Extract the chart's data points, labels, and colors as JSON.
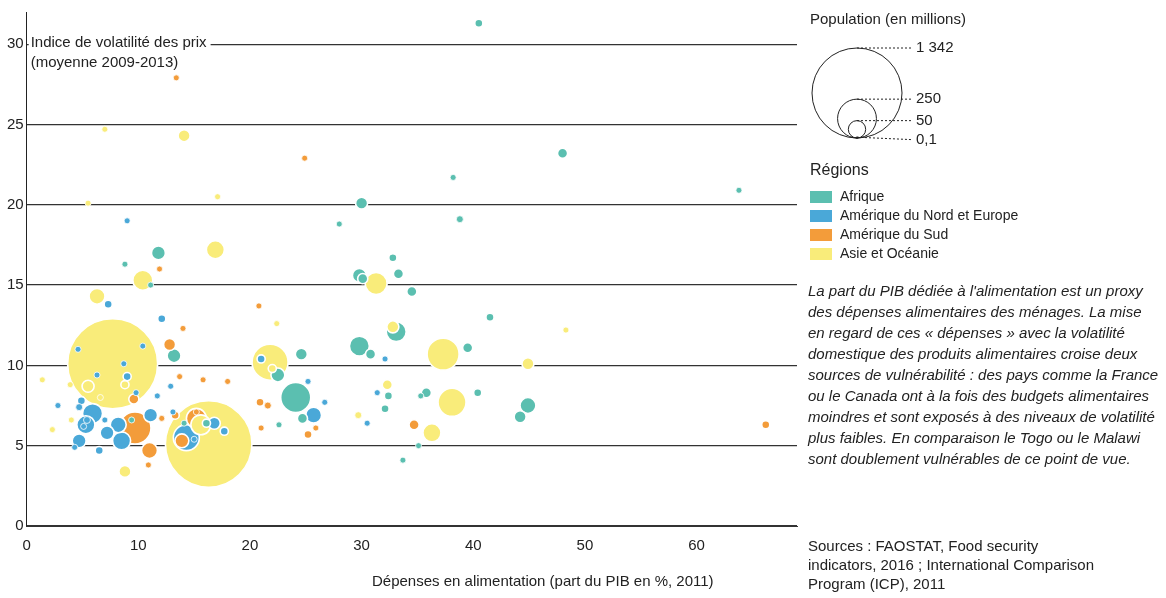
{
  "chart_data": {
    "type": "bubble",
    "xlabel": "Dépenses en alimentation (part du PIB en %, 2011)",
    "ylabel": "Indice de volatilité des prix\n(moyenne 2009-2013)",
    "legend_title": "Régions",
    "legend": "right",
    "grid": "y",
    "xlim": [
      0,
      69
    ],
    "xticks": [
      0,
      10,
      20,
      30,
      40,
      50,
      60
    ],
    "ylim": [
      0,
      32
    ],
    "yticks": [
      0,
      5,
      10,
      15,
      20,
      25,
      30
    ],
    "size_legend": [
      {
        "value": 1342,
        "label": "1 342"
      },
      250,
      50,
      {
        "value": 0.1,
        "label": "0,1"
      }
    ],
    "annotations": [
      "Population (en millions)",
      "La part du PIB dédiée à l'alimentation est un proxy des dépenses alimentaires des ménages. La mise en regard de ces « dépenses » avec la volatilité domestique des produits alimentaires croise deux sources de vulnérabilité : des pays comme la France ou le Canada ont à la fois des budgets alimentaires moindres et sont exposés à des niveaux de volatilité plus faibles. En comparaison le Togo ou le Malawi sont doublement vulnérables de ce point de vue.",
      "Sources : FAOSTAT, Food security indicators, 2016 ; International Comparison Program (ICP), 2011"
    ],
    "series": [
      {
        "name": "Afrique",
        "color": "#5bbfb0",
        "x": [
          8.8,
          11.1,
          13.2,
          9.4,
          14.1,
          16.1,
          29.8,
          30.8,
          24.6,
          22.5,
          24.1,
          24.7,
          22.6,
          38.2,
          30.0,
          38.8,
          32.8,
          29.8,
          30.1,
          33.3,
          34.5,
          41.5,
          33.1,
          39.5,
          32.4,
          35.8,
          35.3,
          40.4,
          44.9,
          44.2,
          32.1,
          35.1,
          33.7,
          40.5,
          48.0,
          63.8,
          28.0,
          11.8
        ],
        "values": [
          16.3,
          15.0,
          10.6,
          6.6,
          6.4,
          6.4,
          11.2,
          10.7,
          10.7,
          9.4,
          8.0,
          6.7,
          6.3,
          21.7,
          20.1,
          19.1,
          16.7,
          15.6,
          15.4,
          15.7,
          14.6,
          13.0,
          12.1,
          11.1,
          8.1,
          8.3,
          8.1,
          8.3,
          7.5,
          6.8,
          7.3,
          5.0,
          4.1,
          31.3,
          23.2,
          20.9,
          18.8,
          17.0
        ],
        "sizes": [
          6,
          6,
          32,
          6,
          6,
          11,
          66,
          17,
          24,
          32,
          150,
          17,
          6,
          6,
          24,
          8,
          11,
          32,
          17,
          17,
          17,
          11,
          66,
          17,
          11,
          17,
          6,
          11,
          42,
          24,
          11,
          6,
          6,
          11,
          17,
          6,
          6,
          32
        ]
      },
      {
        "name": "Amérique du Nord et Europe",
        "color": "#4aa8d8",
        "x": [
          7.3,
          12.1,
          4.6,
          10.4,
          8.7,
          6.3,
          9.0,
          12.9,
          9.8,
          11.7,
          2.8,
          4.9,
          4.7,
          5.9,
          5.3,
          7.0,
          8.2,
          7.2,
          8.5,
          11.1,
          4.7,
          4.3,
          6.5,
          5.1,
          5.4,
          13.1,
          16.8,
          17.7,
          14.3,
          15.0,
          21.0,
          25.2,
          26.7,
          25.7,
          30.5,
          32.1,
          31.4,
          9.0
        ],
        "values": [
          13.8,
          12.9,
          11.0,
          11.2,
          10.1,
          9.4,
          9.3,
          8.7,
          8.3,
          8.1,
          7.5,
          7.8,
          7.4,
          7.0,
          6.3,
          6.6,
          6.3,
          5.8,
          5.3,
          6.9,
          5.3,
          4.9,
          4.7,
          6.2,
          6.6,
          7.1,
          6.4,
          5.9,
          5.5,
          5.4,
          10.4,
          9.0,
          7.7,
          6.9,
          6.4,
          10.4,
          8.3,
          19.0
        ],
        "sizes": [
          11,
          11,
          6,
          6,
          6,
          6,
          11,
          6,
          6,
          6,
          6,
          11,
          8,
          66,
          54,
          6,
          42,
          32,
          54,
          32,
          32,
          6,
          11,
          6,
          8,
          6,
          24,
          11,
          112,
          6,
          11,
          6,
          6,
          42,
          6,
          6,
          6,
          6
        ]
      },
      {
        "name": "Amérique du Sud",
        "color": "#f39c3a",
        "x": [
          11.9,
          14.0,
          12.8,
          13.7,
          15.8,
          18.0,
          9.6,
          9.7,
          11.0,
          10.9,
          12.1,
          13.3,
          15.2,
          15.2,
          13.9,
          20.8,
          20.9,
          21.0,
          21.6,
          25.9,
          25.2,
          34.7,
          66.2,
          13.4,
          24.9
        ],
        "values": [
          16.0,
          12.3,
          11.3,
          9.3,
          9.1,
          9.0,
          7.9,
          6.1,
          4.7,
          3.8,
          6.7,
          6.9,
          6.7,
          7.1,
          5.3,
          13.7,
          7.7,
          6.1,
          7.5,
          6.1,
          5.7,
          6.3,
          6.3,
          27.9,
          22.9
        ],
        "sizes": [
          6,
          6,
          24,
          6,
          6,
          6,
          17,
          170,
          42,
          6,
          6,
          11,
          66,
          6,
          32,
          6,
          11,
          6,
          8,
          6,
          11,
          17,
          11,
          6,
          6
        ]
      },
      {
        "name": "Asie et Océanie",
        "color": "#f9ec7a",
        "x": [
          7.7,
          16.3,
          10.4,
          6.3,
          1.4,
          3.9,
          5.5,
          8.8,
          6.6,
          8.8,
          2.3,
          4.0,
          15.6,
          21.8,
          22.0,
          22.4,
          29.7,
          31.3,
          48.3,
          32.8,
          37.3,
          44.9,
          32.3,
          38.1,
          36.3,
          14.1,
          7.0,
          5.5,
          17.1,
          16.9
        ],
        "values": [
          10.1,
          5.1,
          15.3,
          14.3,
          9.1,
          8.8,
          8.7,
          8.8,
          8.0,
          3.4,
          6.0,
          6.6,
          6.3,
          10.2,
          9.8,
          12.6,
          6.9,
          15.1,
          12.2,
          12.4,
          10.7,
          10.1,
          8.8,
          7.7,
          5.8,
          24.3,
          24.7,
          20.1,
          20.5,
          17.2
        ],
        "sizes": [
          1342,
          1241,
          66,
          42,
          6,
          6,
          24,
          11,
          6,
          24,
          6,
          6,
          66,
          215,
          11,
          6,
          8,
          80,
          6,
          24,
          170,
          24,
          17,
          130,
          54,
          24,
          6,
          6,
          6,
          54
        ]
      }
    ]
  }
}
